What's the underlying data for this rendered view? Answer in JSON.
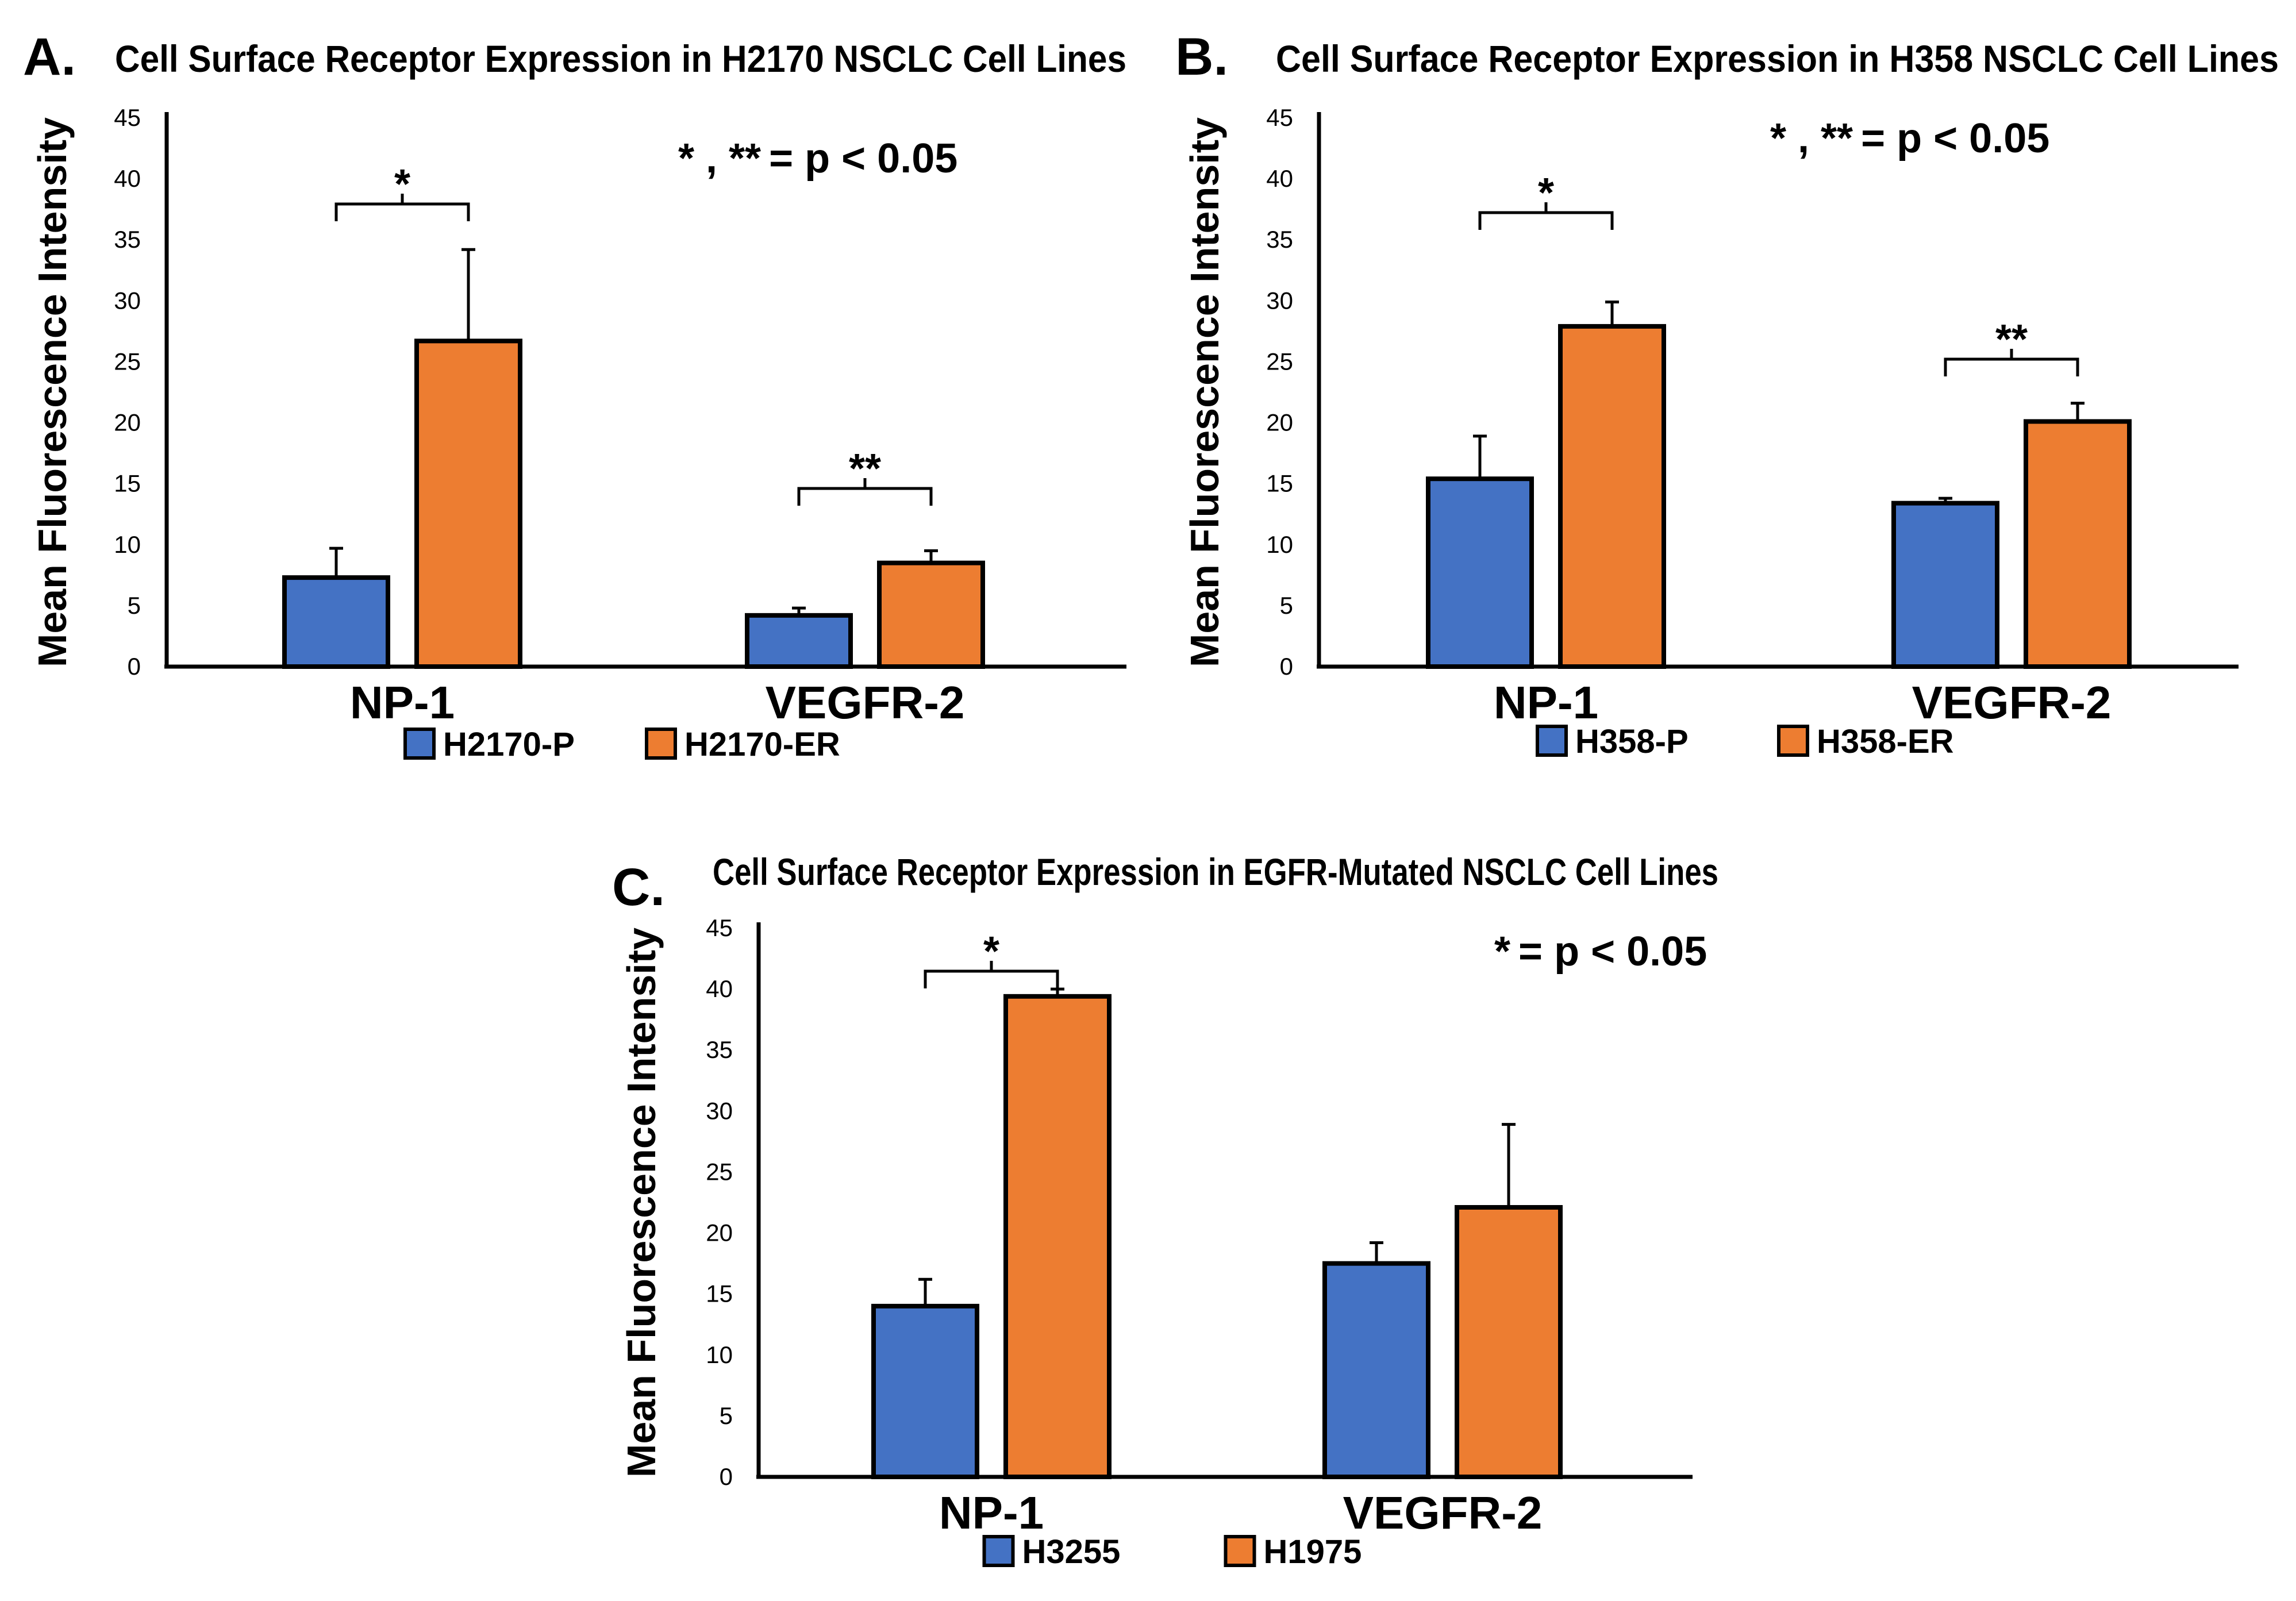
{
  "colors": {
    "series1": "#4472C4",
    "series2": "#ED7D31",
    "outline": "#000000"
  },
  "chart_data": [
    {
      "panel": "A.",
      "type": "bar",
      "title": "Cell Surface Receptor Expression in H2170 NSCLC Cell Lines",
      "ylabel": "Mean Fluorescence Intensity",
      "xlabel": "",
      "ylim": [
        0,
        45
      ],
      "yticks": [
        "0",
        "5",
        "10",
        "15",
        "20",
        "25",
        "30",
        "35",
        "40",
        "45"
      ],
      "categories": [
        "NP-1",
        "VEGFR-2"
      ],
      "series": [
        {
          "name": "H2170-P",
          "values": [
            7.3,
            4.2
          ],
          "errors": [
            2.4,
            0.6
          ]
        },
        {
          "name": "H2170-ER",
          "values": [
            26.7,
            8.5
          ],
          "errors": [
            7.5,
            1.0
          ]
        }
      ],
      "significance": [
        "*",
        "**"
      ],
      "annotation": {
        "marks": "* , **",
        "text": "= p < 0.05"
      },
      "legend": "bottom-center",
      "grid": false
    },
    {
      "panel": "B.",
      "type": "bar",
      "title": "Cell Surface Receptor Expression in H358 NSCLC Cell Lines",
      "ylabel": "Mean Fluorescence Intensity",
      "xlabel": "",
      "ylim": [
        0,
        45
      ],
      "yticks": [
        "0",
        "5",
        "10",
        "15",
        "20",
        "25",
        "30",
        "35",
        "40",
        "45"
      ],
      "categories": [
        "NP-1",
        "VEGFR-2"
      ],
      "series": [
        {
          "name": "H358-P",
          "values": [
            15.4,
            13.4
          ],
          "errors": [
            3.5,
            0.4
          ]
        },
        {
          "name": "H358-ER",
          "values": [
            27.9,
            20.1
          ],
          "errors": [
            2.0,
            1.5
          ]
        }
      ],
      "significance": [
        "*",
        "**"
      ],
      "annotation": {
        "marks": "* , **",
        "text": "= p < 0.05"
      },
      "legend": "bottom-center",
      "grid": false
    },
    {
      "panel": "C.",
      "type": "bar",
      "title": "Cell Surface Receptor Expression in EGFR-Mutated NSCLC Cell Lines",
      "ylabel": "Mean Fluorescence Intensity",
      "xlabel": "",
      "ylim": [
        0,
        45
      ],
      "yticks": [
        "0",
        "5",
        "10",
        "15",
        "20",
        "25",
        "30",
        "35",
        "40",
        "45"
      ],
      "categories": [
        "NP-1",
        "VEGFR-2"
      ],
      "series": [
        {
          "name": "H3255",
          "values": [
            14.0,
            17.5
          ],
          "errors": [
            2.2,
            1.7
          ]
        },
        {
          "name": "H1975",
          "values": [
            39.4,
            22.1
          ],
          "errors": [
            0.6,
            6.8
          ]
        }
      ],
      "significance": [
        "*",
        ""
      ],
      "annotation": {
        "marks": "*",
        "text": "= p < 0.05"
      },
      "legend": "bottom-center",
      "grid": false
    }
  ]
}
